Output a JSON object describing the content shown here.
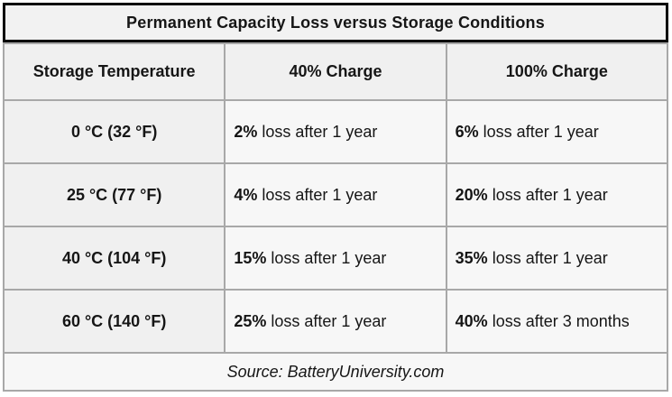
{
  "title": "Permanent Capacity Loss versus Storage Conditions",
  "header": {
    "col_temperature": "Storage Temperature",
    "col_charge40": "40% Charge",
    "col_charge100": "100% Charge"
  },
  "rows": [
    {
      "temperature": "0 °C (32 °F)",
      "charge40_pct": "2%",
      "charge40_rest": " loss after 1 year",
      "charge100_pct": "6%",
      "charge100_rest": " loss after 1 year"
    },
    {
      "temperature": "25 °C (77 °F)",
      "charge40_pct": "4%",
      "charge40_rest": " loss after 1 year",
      "charge100_pct": "20%",
      "charge100_rest": " loss after 1 year"
    },
    {
      "temperature": "40 °C (104 °F)",
      "charge40_pct": "15%",
      "charge40_rest": " loss after 1 year",
      "charge100_pct": "35%",
      "charge100_rest": " loss after 1 year"
    },
    {
      "temperature": "60 °C (140 °F)",
      "charge40_pct": "25%",
      "charge40_rest": " loss after 1 year",
      "charge100_pct": "40%",
      "charge100_rest": " loss after 3 months"
    }
  ],
  "footer": {
    "source": "Source: BatteryUniversity.com"
  },
  "colors": {
    "border_gray": "#a8a8a8",
    "border_black": "#0a0a0a",
    "title_bg": "#f2f2f2",
    "label_bg": "#f0f0f0",
    "cell_bg": "#f7f7f7",
    "text": "#161616"
  },
  "chart_data": {
    "type": "table",
    "title": "Permanent Capacity Loss versus Storage Conditions",
    "columns": [
      "Storage Temperature",
      "40% Charge",
      "100% Charge"
    ],
    "rows": [
      [
        "0 °C (32 °F)",
        "2% loss after 1 year",
        "6% loss after 1 year"
      ],
      [
        "25 °C (77 °F)",
        "4% loss after 1 year",
        "20% loss after 1 year"
      ],
      [
        "40 °C (104 °F)",
        "15% loss after 1 year",
        "35% loss after 1 year"
      ],
      [
        "60 °C (140 °F)",
        "25% loss after 1 year",
        "40% loss after 3 months"
      ]
    ],
    "source": "Source: BatteryUniversity.com",
    "loss_pct_40_charge": [
      2,
      4,
      15,
      25
    ],
    "loss_pct_100_charge": [
      6,
      20,
      35,
      40
    ],
    "temperatures_c": [
      0,
      25,
      40,
      60
    ]
  }
}
